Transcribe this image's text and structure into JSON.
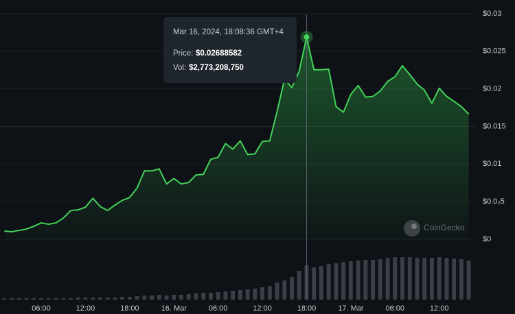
{
  "chart_data": {
    "type": "line",
    "x": [
      1,
      2,
      3,
      4,
      5,
      6,
      7,
      8,
      9,
      10,
      11,
      12,
      13,
      14,
      15,
      16,
      17,
      18,
      19,
      20,
      21,
      22,
      23,
      24,
      25,
      26,
      27,
      28,
      29,
      30,
      31,
      32,
      33,
      34,
      35,
      36,
      37,
      38,
      39,
      40,
      41,
      42,
      43,
      44,
      45,
      46,
      47,
      48,
      49,
      50,
      51,
      52,
      53,
      54,
      55,
      56,
      57,
      58,
      59,
      60,
      61,
      62,
      63,
      64
    ],
    "values": [
      0.00109,
      0.001,
      0.00118,
      0.00136,
      0.00173,
      0.00218,
      0.002,
      0.00218,
      0.00282,
      0.00382,
      0.00391,
      0.00427,
      0.00545,
      0.00436,
      0.00382,
      0.00455,
      0.00518,
      0.00555,
      0.00682,
      0.00909,
      0.00909,
      0.00936,
      0.00736,
      0.00809,
      0.00736,
      0.00755,
      0.00855,
      0.00864,
      0.01064,
      0.01091,
      0.01273,
      0.012,
      0.01309,
      0.01127,
      0.01136,
      0.013,
      0.01309,
      0.017,
      0.02127,
      0.02018,
      0.02236,
      0.02689,
      0.02255,
      0.02255,
      0.02264,
      0.01764,
      0.0169,
      0.01927,
      0.02045,
      0.01891,
      0.019,
      0.01973,
      0.021,
      0.02164,
      0.02309,
      0.02191,
      0.02064,
      0.01982,
      0.01809,
      0.02009,
      0.019,
      0.01836,
      0.01764,
      0.01664
    ],
    "color": "#44d35a",
    "volume": {
      "axis": "y2",
      "color": "#3a3f47",
      "values": [
        111000000,
        111000000,
        111000000,
        111000000,
        111000000,
        111000000,
        111000000,
        111000000,
        111000000,
        111000000,
        166000000,
        166000000,
        166000000,
        166000000,
        166000000,
        166000000,
        222000000,
        222000000,
        277000000,
        333000000,
        333000000,
        388000000,
        333000000,
        388000000,
        388000000,
        444000000,
        499000000,
        555000000,
        555000000,
        610000000,
        666000000,
        721000000,
        777000000,
        832000000,
        888000000,
        999000000,
        1110000000,
        1387000000,
        1553000000,
        1831000000,
        2330000000,
        2773208750,
        2607000000,
        2718000000,
        2885000000,
        2940000000,
        3051000000,
        3106000000,
        3162000000,
        3217000000,
        3217000000,
        3273000000,
        3384000000,
        3439000000,
        3439000000,
        3439000000,
        3384000000,
        3384000000,
        3384000000,
        3439000000,
        3384000000,
        3328000000,
        3273000000,
        3162000000
      ]
    },
    "xlim": [
      0.5,
      64.5
    ],
    "xticks": [
      {
        "value": 6,
        "label": "06:00"
      },
      {
        "value": 12,
        "label": "12:00"
      },
      {
        "value": 18,
        "label": "18:00"
      },
      {
        "value": 24,
        "label": "16. Mar"
      },
      {
        "value": 30,
        "label": "06:00"
      },
      {
        "value": 36,
        "label": "12:00"
      },
      {
        "value": 42,
        "label": "18:00"
      },
      {
        "value": 48,
        "label": "17. Mar"
      },
      {
        "value": 54,
        "label": "06:00"
      },
      {
        "value": 60,
        "label": "12:00"
      }
    ],
    "ylim": [
      0,
      0.03
    ],
    "yticks": [
      {
        "value": 0,
        "label": "$0"
      },
      {
        "value": 0.005,
        "label": "$0.0₂5"
      },
      {
        "value": 0.01,
        "label": "$0.01"
      },
      {
        "value": 0.015,
        "label": "$0.015"
      },
      {
        "value": 0.02,
        "label": "$0.02"
      },
      {
        "value": 0.025,
        "label": "$0.025"
      },
      {
        "value": 0.03,
        "label": "$0.03"
      }
    ],
    "y2lim": [
      0,
      5000000000
    ],
    "grid": true,
    "watermark": "CoinGecko",
    "tooltip": {
      "date": "Mar 16, 2024, 18:08:36 GMT+4",
      "price_label": "Price:",
      "price": "$0.02688582",
      "vol_label": "Vol:",
      "vol": "$2,773,208,750"
    }
  }
}
